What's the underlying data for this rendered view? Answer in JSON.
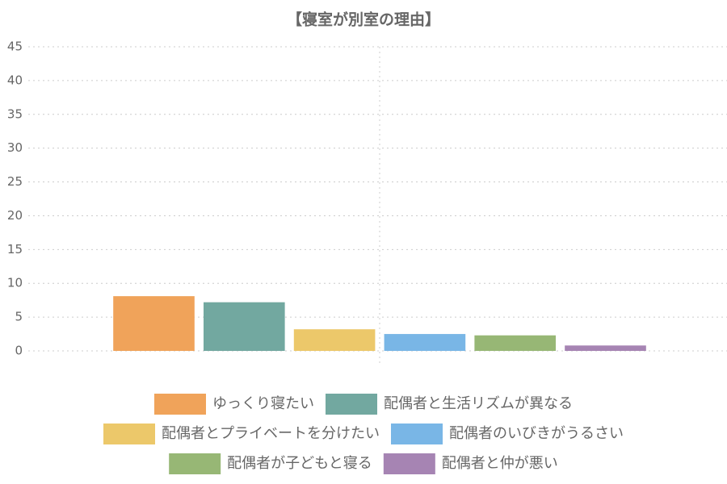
{
  "chart_data": {
    "type": "bar",
    "title": "【寝室が別室の理由】",
    "categories": [
      null
    ],
    "series": [
      {
        "name": "ゆっくり寝たい",
        "color": "#f0a35a",
        "values": [
          8.1
        ]
      },
      {
        "name": "配偶者と生活リズムが異なる",
        "color": "#72a8a0",
        "values": [
          7.2
        ]
      },
      {
        "name": "配偶者とプライベートを分けたい",
        "color": "#ecc86a",
        "values": [
          3.2
        ]
      },
      {
        "name": "配偶者のいびきがうるさい",
        "color": "#79b6e6",
        "values": [
          2.5
        ]
      },
      {
        "name": "配偶者が子どもと寝る",
        "color": "#97b775",
        "values": [
          2.3
        ]
      },
      {
        "name": "配偶者と仲が悪い",
        "color": "#a684b3",
        "values": [
          0.8
        ]
      }
    ],
    "ylim": [
      0,
      45
    ],
    "yticks": [
      0,
      5,
      10,
      15,
      20,
      25,
      30,
      35,
      40,
      45
    ],
    "grid": true,
    "legend": "bottom"
  }
}
